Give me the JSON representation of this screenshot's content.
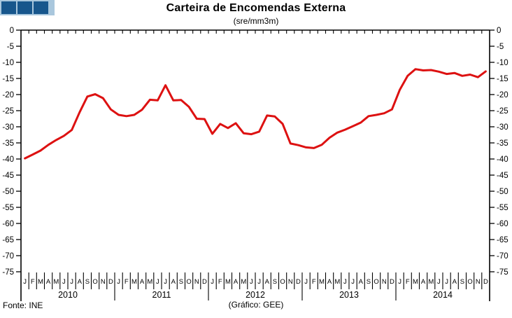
{
  "title": "Carteira de Encomendas Externa",
  "subtitle": "(sre/mm3m)",
  "footer": {
    "source": "Fonte: INE",
    "credit": "(Gráfico: GEE)"
  },
  "logo": {
    "band_color": "#a9c7dd",
    "square_color": "#17568c",
    "square_count": 3
  },
  "chart_data": {
    "type": "line",
    "title": "Carteira de Encomendas Externa",
    "subtitle": "(sre/mm3m)",
    "xlabel": "",
    "ylabel": "",
    "ylim": [
      -75,
      0
    ],
    "ytick_step": 5,
    "ytick_labels": [
      "0",
      "-5",
      "-10",
      "-15",
      "-20",
      "-25",
      "-30",
      "-35",
      "-40",
      "-45",
      "-50",
      "-55",
      "-60",
      "-65",
      "-70",
      "-75"
    ],
    "y_axis_sides": "both",
    "grid": false,
    "legend": "none",
    "line_color": "#dd1111",
    "line_width": 3,
    "month_letters": [
      "J",
      "F",
      "M",
      "A",
      "M",
      "J",
      "J",
      "A",
      "S",
      "O",
      "N",
      "D"
    ],
    "years": [
      "2010",
      "2011",
      "2012",
      "2013",
      "2014"
    ],
    "x_range": "Jan 2010 - Dec 2014 (monthly)",
    "series": [
      {
        "name": "Carteira de Encomendas Externa (sre/mm3m)",
        "values": [
          -39.8,
          -38.6,
          -37.4,
          -35.6,
          -34.1,
          -32.8,
          -31.0,
          -25.5,
          -20.6,
          -19.9,
          -21.1,
          -24.6,
          -26.3,
          -26.7,
          -26.3,
          -24.7,
          -21.6,
          -21.8,
          -17.1,
          -21.8,
          -21.7,
          -23.8,
          -27.5,
          -27.6,
          -32.2,
          -29.1,
          -30.4,
          -28.9,
          -32.0,
          -32.3,
          -31.5,
          -26.5,
          -26.8,
          -29.1,
          -35.2,
          -35.7,
          -36.4,
          -36.6,
          -35.6,
          -33.4,
          -31.8,
          -30.9,
          -29.8,
          -28.7,
          -26.7,
          -26.3,
          -25.8,
          -24.6,
          -18.5,
          -14.2,
          -12.1,
          -12.5,
          -12.4,
          -12.9,
          -13.6,
          -13.3,
          -14.2,
          -13.8,
          -14.6,
          -12.8
        ]
      }
    ]
  }
}
